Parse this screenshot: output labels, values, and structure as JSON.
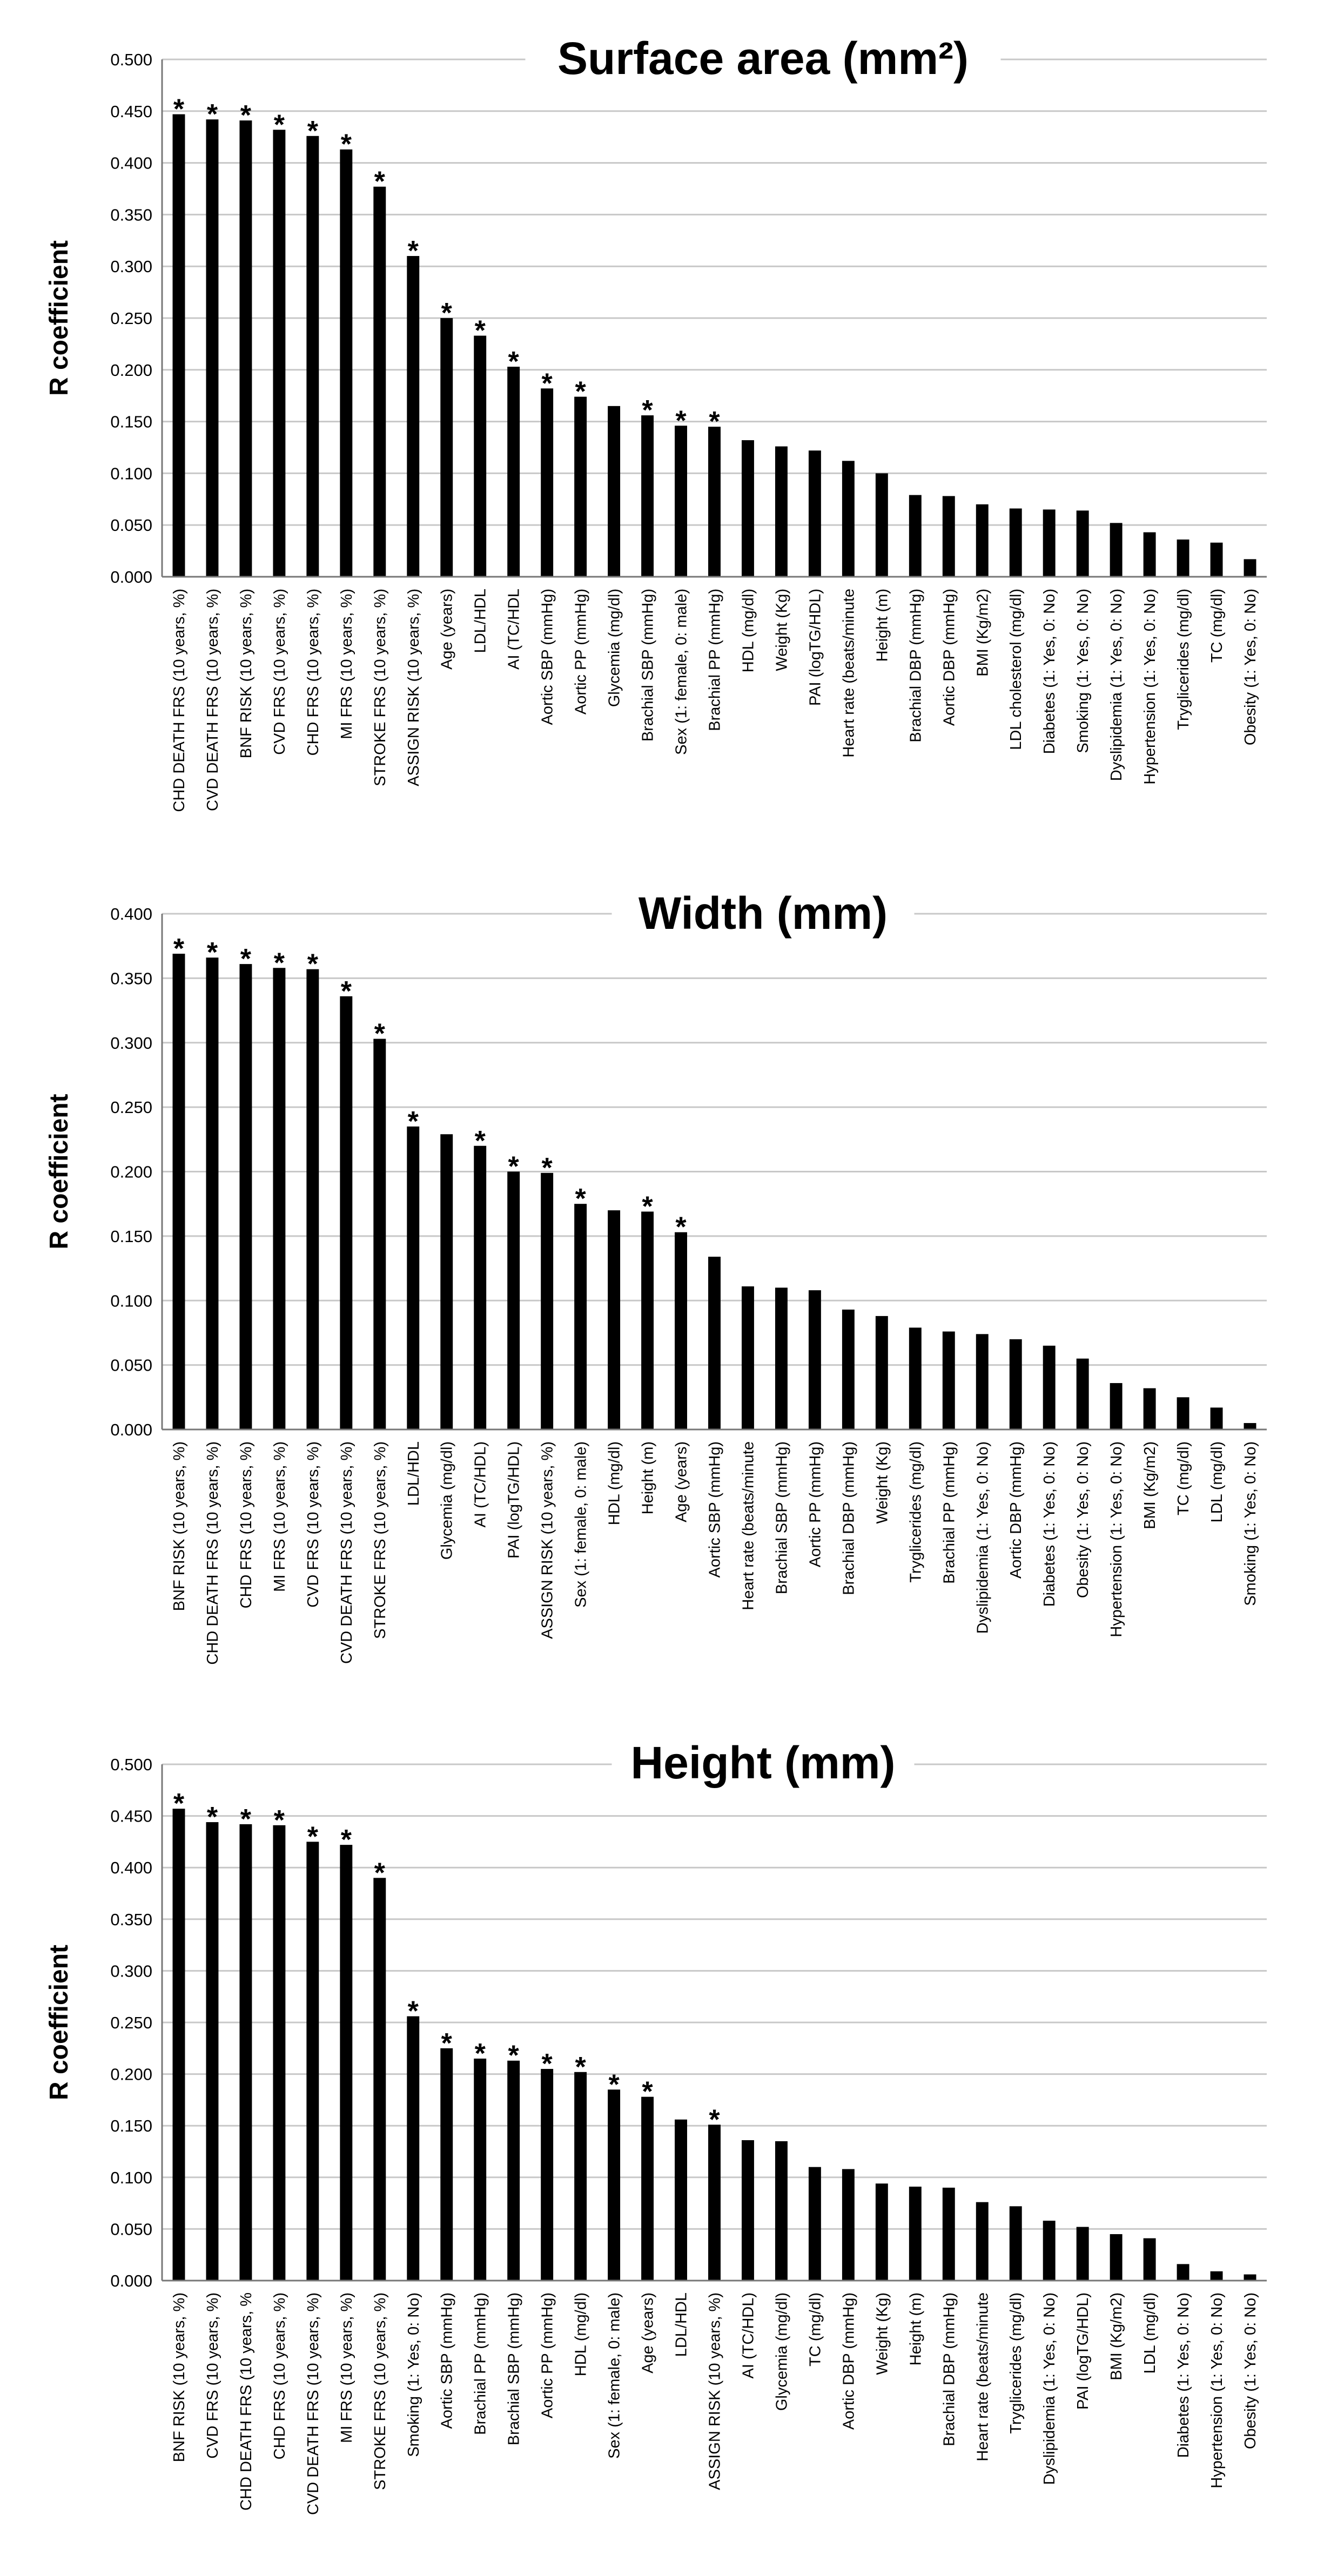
{
  "chart_data": [
    {
      "type": "bar",
      "title": "Surface area (mm²)",
      "ylabel": "R coefficient",
      "xlabel": "",
      "ylim": [
        0,
        0.5
      ],
      "yticks": [
        "0.000",
        "0.050",
        "0.100",
        "0.150",
        "0.200",
        "0.250",
        "0.300",
        "0.350",
        "0.400",
        "0.450",
        "0.500"
      ],
      "grid": true,
      "categories": [
        "CHD DEATH FRS (10 years, %)",
        "CVD DEATH FRS (10 years, %)",
        "BNF RISK (10 years, %)",
        "CVD FRS (10 years, %)",
        "CHD FRS (10 years, %)",
        "MI FRS (10 years, %)",
        "STROKE FRS (10 years, %)",
        "ASSIGN RISK (10 years, %)",
        "Age (years)",
        "LDL/HDL",
        "AI (TC/HDL",
        "Aortic SBP (mmHg)",
        "Aortic PP (mmHg)",
        "Glycemia (mg/dl)",
        "Brachial SBP (mmHg)",
        "Sex (1: female, 0: male)",
        "Brachial PP (mmHg)",
        "HDL (mg/dl)",
        "Weight (Kg)",
        "PAI (logTG/HDL)",
        "Heart rate (beats/minute",
        "Height (m)",
        "Brachial DBP (mmHg)",
        "Aortic DBP (mmHg)",
        "BMI (Kg/m2)",
        "LDL cholesterol (mg/dl)",
        "Diabetes (1: Yes, 0: No)",
        "Smoking (1: Yes, 0: No)",
        "Dyslipidemia (1: Yes, 0: No)",
        "Hypertension (1: Yes, 0: No)",
        "Tryglicerides (mg/dl)",
        "TC (mg/dl)",
        "Obesity (1: Yes, 0: No)"
      ],
      "values": [
        0.447,
        0.442,
        0.441,
        0.432,
        0.426,
        0.413,
        0.377,
        0.31,
        0.25,
        0.233,
        0.203,
        0.182,
        0.174,
        0.165,
        0.156,
        0.146,
        0.145,
        0.132,
        0.126,
        0.122,
        0.112,
        0.1,
        0.079,
        0.078,
        0.07,
        0.066,
        0.065,
        0.064,
        0.052,
        0.043,
        0.036,
        0.033,
        0.017
      ],
      "significant": [
        true,
        true,
        true,
        true,
        true,
        true,
        true,
        true,
        true,
        true,
        true,
        true,
        true,
        false,
        true,
        true,
        true,
        false,
        false,
        false,
        false,
        false,
        false,
        false,
        false,
        false,
        false,
        false,
        false,
        false,
        false,
        false,
        false
      ],
      "marker": "*"
    },
    {
      "type": "bar",
      "title": "Width (mm)",
      "ylabel": "R coefficient",
      "xlabel": "",
      "ylim": [
        0,
        0.4
      ],
      "yticks": [
        "0.000",
        "0.050",
        "0.100",
        "0.150",
        "0.200",
        "0.250",
        "0.300",
        "0.350",
        "0.400"
      ],
      "grid": true,
      "categories": [
        "BNF RISK (10 years, %)",
        "CHD DEATH FRS (10 years, %)",
        "CHD FRS (10 years, %)",
        "MI FRS (10 years, %)",
        "CVD FRS (10 years, %)",
        "CVD DEATH FRS (10 years, %)",
        "STROKE FRS (10 years, %)",
        "LDL/HDL",
        "Glycemia (mg/dl)",
        "AI (TC/HDL)",
        "PAI (logTG/HDL)",
        "ASSIGN RISK (10 years, %)",
        "Sex (1: female, 0: male)",
        "HDL (mg/dl)",
        "Height (m)",
        "Age (years)",
        "Aortic SBP (mmHg)",
        "Heart rate (beats/minute",
        "Brachial SBP (mmHg)",
        "Aortic PP (mmHg)",
        "Brachial DBP (mmHg)",
        "Weight (Kg)",
        "Tryglicerides (mg/dl)",
        "Brachial PP (mmHg)",
        "Dyslipidemia (1: Yes, 0: No)",
        "Aortic DBP (mmHg)",
        "Diabetes (1: Yes, 0: No)",
        "Obesity (1: Yes, 0: No)",
        "Hypertension (1: Yes, 0: No)",
        "BMI (Kg/m2)",
        "TC (mg/dl)",
        "LDL (mg/dl)",
        "Smoking (1: Yes, 0: No)"
      ],
      "values": [
        0.369,
        0.366,
        0.361,
        0.358,
        0.357,
        0.336,
        0.303,
        0.235,
        0.229,
        0.22,
        0.2,
        0.199,
        0.175,
        0.17,
        0.169,
        0.153,
        0.134,
        0.111,
        0.11,
        0.108,
        0.093,
        0.088,
        0.079,
        0.076,
        0.074,
        0.07,
        0.065,
        0.055,
        0.036,
        0.032,
        0.025,
        0.017,
        0.005
      ],
      "significant": [
        true,
        true,
        true,
        true,
        true,
        true,
        true,
        true,
        false,
        true,
        true,
        true,
        true,
        false,
        true,
        true,
        false,
        false,
        false,
        false,
        false,
        false,
        false,
        false,
        false,
        false,
        false,
        false,
        false,
        false,
        false,
        false,
        false
      ],
      "marker": "*"
    },
    {
      "type": "bar",
      "title": "Height (mm)",
      "ylabel": "R coefficient",
      "xlabel": "",
      "ylim": [
        0,
        0.5
      ],
      "yticks": [
        "0.000",
        "0.050",
        "0.100",
        "0.150",
        "0.200",
        "0.250",
        "0.300",
        "0.350",
        "0.400",
        "0.450",
        "0.500"
      ],
      "grid": true,
      "categories": [
        "BNF RISK (10 years, %)",
        "CVD FRS (10 years, %)",
        "CHD DEATH FRS (10 years, %",
        "CHD FRS (10 years, %)",
        "CVD DEATH FRS (10 years, %)",
        "MI FRS (10 years, %)",
        "STROKE FRS (10 years, %)",
        "Smoking (1: Yes, 0: No)",
        "Aortic SBP (mmHg)",
        "Brachial PP (mmHg)",
        "Brachial SBP (mmHg)",
        "Aortic PP (mmHg)",
        "HDL (mg/dl)",
        "Sex (1: female, 0: male)",
        "Age (years)",
        "LDL/HDL",
        "ASSIGN RISK (10 years, %)",
        "AI (TC/HDL)",
        "Glycemia (mg/dl)",
        "TC (mg/dl)",
        "Aortic DBP (mmHg)",
        "Weight (Kg)",
        "Height (m)",
        "Brachial DBP (mmHg)",
        "Heart rate (beats/minute",
        "Tryglicerides (mg/dl)",
        "Dyslipidemia (1: Yes, 0: No)",
        "PAI (logTG/HDL)",
        "BMI (Kg/m2)",
        "LDL (mg/dl)",
        "Diabetes (1: Yes, 0: No)",
        "Hypertension (1: Yes, 0: No)",
        "Obesity (1: Yes, 0: No)"
      ],
      "values": [
        0.457,
        0.444,
        0.442,
        0.441,
        0.425,
        0.422,
        0.39,
        0.256,
        0.225,
        0.215,
        0.213,
        0.205,
        0.202,
        0.185,
        0.178,
        0.156,
        0.151,
        0.136,
        0.135,
        0.11,
        0.108,
        0.094,
        0.091,
        0.09,
        0.076,
        0.072,
        0.058,
        0.052,
        0.045,
        0.041,
        0.016,
        0.009,
        0.006
      ],
      "significant": [
        true,
        true,
        true,
        true,
        true,
        true,
        true,
        true,
        true,
        true,
        true,
        true,
        true,
        true,
        true,
        false,
        true,
        false,
        false,
        false,
        false,
        false,
        false,
        false,
        false,
        false,
        false,
        false,
        false,
        false,
        false,
        false,
        false
      ],
      "marker": "*"
    }
  ]
}
